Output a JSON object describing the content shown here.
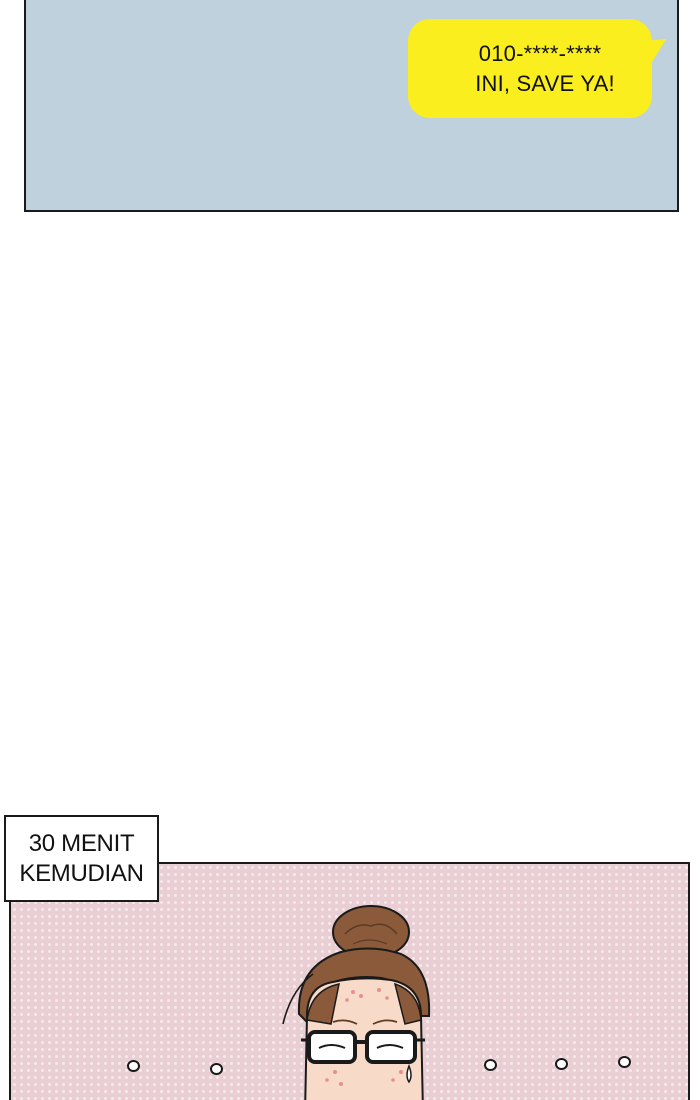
{
  "top_panel": {
    "bubble": {
      "line1": "010-****-****",
      "line2": "INI, SAVE YA!"
    },
    "colors": {
      "panel_bg": "#bed1dc",
      "bubble_bg": "#fbee1e"
    }
  },
  "bottom_panel": {
    "caption": {
      "line1": "30 MENIT",
      "line2": "KEMUDIAN"
    },
    "colors": {
      "panel_bg": "#e9cfd3"
    },
    "icons": [
      "woman-with-glasses-figure",
      "ellipsis-dot-icon"
    ]
  }
}
